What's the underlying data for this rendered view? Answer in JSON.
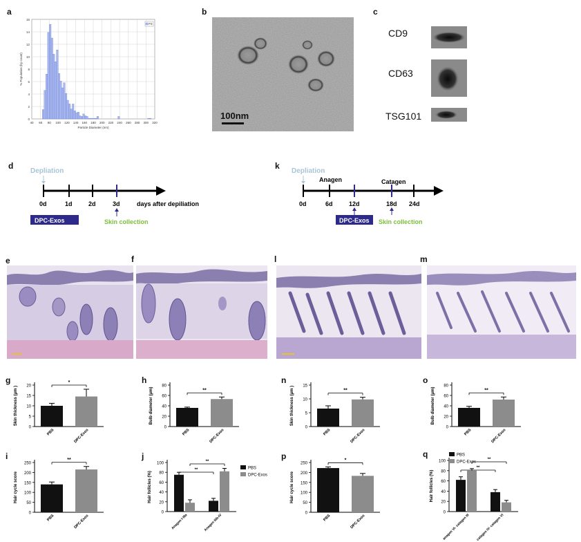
{
  "panel_letters": {
    "a": "a",
    "b": "b",
    "c": "c",
    "d": "d",
    "k": "k",
    "e": "e",
    "f": "f",
    "l": "l",
    "m": "m",
    "g": "g",
    "h": "h",
    "n": "n",
    "o": "o",
    "i": "i",
    "j": "j",
    "p": "p",
    "q": "q"
  },
  "colors": {
    "histogram_bar": "#a9b8ee",
    "histogram_edge": "#5a6fd0",
    "dpc_box": "#2e2a8c",
    "depilation": "#a9c4d6",
    "skin_collection": "#7cbf3a",
    "pbs_bar": "#111111",
    "exos_bar": "#8c8c8c",
    "he_tissue": "#b9a6d1"
  },
  "panel_b": {
    "scale_label": "100nm"
  },
  "panel_c": {
    "bands": [
      {
        "label": "CD9"
      },
      {
        "label": "CD63"
      },
      {
        "label": "TSG101"
      }
    ]
  },
  "timeline_d": {
    "depilation_label": "Depliation",
    "ticks": [
      "0d",
      "1d",
      "2d",
      "3d"
    ],
    "axis_label": "days after depiliation",
    "dpc_label": "DPC-Exos",
    "collection_label": "Skin collection"
  },
  "timeline_k": {
    "depilation_label": "Depliation",
    "phase_labels": [
      "Anagen",
      "Catagen"
    ],
    "ticks": [
      "0d",
      "6d",
      "12d",
      "18d",
      "24d"
    ],
    "dpc_label": "DPC-Exos",
    "collection_label": "Skin collection"
  },
  "chart_data": [
    {
      "panel": "a",
      "type": "bar",
      "legend": "P3",
      "xlabel": "Particle Diameter (nm)",
      "ylabel": "% Population (by count)",
      "x_ticks": [
        40,
        60,
        80,
        100,
        120,
        140,
        160,
        180,
        200,
        220,
        240,
        260,
        280,
        300,
        320
      ],
      "ylim": [
        0,
        16
      ],
      "y_ticks": [
        0,
        2,
        4,
        6,
        8,
        10,
        12,
        14,
        16
      ],
      "bin_width": 4,
      "x": [
        66,
        70,
        74,
        78,
        82,
        86,
        90,
        94,
        98,
        102,
        106,
        110,
        114,
        118,
        122,
        126,
        130,
        134,
        138,
        142,
        146,
        150,
        154,
        158,
        162,
        166,
        170,
        174,
        178,
        182,
        186,
        190,
        194,
        198,
        202,
        206,
        210,
        214,
        218,
        222,
        226,
        230,
        234,
        238,
        242,
        246,
        250,
        254,
        258,
        262,
        266,
        270,
        274,
        278,
        282,
        286,
        290,
        294,
        298,
        302,
        306,
        310
      ],
      "values": [
        1.5,
        4.6,
        7.2,
        13.9,
        15.2,
        13.0,
        10.4,
        9.2,
        11.1,
        7.3,
        6.1,
        5.0,
        5.8,
        4.1,
        3.0,
        2.4,
        1.6,
        2.4,
        1.3,
        1.0,
        1.1,
        0.5,
        0.4,
        0.8,
        0.5,
        0.4,
        0.1,
        0.1,
        0.1,
        0.1,
        0.1,
        0.4,
        0,
        0,
        0,
        0,
        0,
        0,
        0,
        0,
        0,
        0,
        0,
        0.4,
        0,
        0,
        0,
        0,
        0,
        0,
        0,
        0,
        0,
        0,
        0,
        0,
        0,
        0,
        0,
        0,
        0.1,
        0.1
      ]
    },
    {
      "panel": "g",
      "type": "bar",
      "categories": [
        "PBS",
        "DPC-Exos"
      ],
      "values": [
        10,
        14.5
      ],
      "errors": [
        1.2,
        3.5
      ],
      "ylabel": "Skin thickness (μm )",
      "ylim": [
        0,
        20
      ],
      "y_ticks": [
        0,
        5,
        10,
        15,
        20
      ],
      "sig": "*"
    },
    {
      "panel": "h",
      "type": "bar",
      "categories": [
        "PBS",
        "DPC-Exos"
      ],
      "values": [
        36,
        53
      ],
      "errors": [
        1.5,
        4
      ],
      "ylabel": "Bulb diameter (μm)",
      "ylim": [
        0,
        80
      ],
      "y_ticks": [
        0,
        20,
        40,
        60,
        80
      ],
      "sig": "**"
    },
    {
      "panel": "n",
      "type": "bar",
      "categories": [
        "PBS",
        "DPC-Exos"
      ],
      "values": [
        6.5,
        9.8
      ],
      "errors": [
        1,
        0.8
      ],
      "ylabel": "Skin thickness (μm )",
      "ylim": [
        0,
        15
      ],
      "y_ticks": [
        0,
        5,
        10,
        15
      ],
      "sig": "**"
    },
    {
      "panel": "o",
      "type": "bar",
      "categories": [
        "PBS",
        "DPC-Exos"
      ],
      "values": [
        36,
        52
      ],
      "errors": [
        3,
        5
      ],
      "ylabel": "Bulb diameter (μm)",
      "ylim": [
        0,
        80
      ],
      "y_ticks": [
        0,
        20,
        40,
        60,
        80
      ],
      "sig": "**"
    },
    {
      "panel": "i",
      "type": "bar",
      "categories": [
        "PBS",
        "DPC-Exos"
      ],
      "values": [
        140,
        215
      ],
      "errors": [
        12,
        15
      ],
      "ylabel": "Hair cycle score",
      "ylim": [
        0,
        250
      ],
      "y_ticks": [
        0,
        50,
        100,
        150,
        200,
        250
      ],
      "sig": "**"
    },
    {
      "panel": "p",
      "type": "bar",
      "categories": [
        "PBS",
        "DPC-Exos"
      ],
      "values": [
        222,
        183
      ],
      "errors": [
        6,
        12
      ],
      "ylabel": "Hair cycle score",
      "ylim": [
        0,
        250
      ],
      "y_ticks": [
        0,
        50,
        100,
        150,
        200,
        250
      ],
      "sig": "*"
    },
    {
      "panel": "j",
      "type": "bar",
      "categories": [
        "Anagen I-IIIa",
        "Anagen IIIb-IV"
      ],
      "ylabel": "Hair follicles (%)",
      "ylim": [
        0,
        100
      ],
      "y_ticks": [
        0,
        20,
        40,
        60,
        80,
        100
      ],
      "series": [
        {
          "name": "PBS",
          "values": [
            75,
            22
          ],
          "errors": [
            5,
            5
          ]
        },
        {
          "name": "DPC-Exos",
          "values": [
            18,
            82
          ],
          "errors": [
            6,
            6
          ]
        }
      ],
      "sig": [
        "**",
        "**"
      ]
    },
    {
      "panel": "q",
      "type": "bar",
      "categories": [
        "anagen VI- catagen III",
        "catagen IV- catagen VI"
      ],
      "ylabel": "Hair follicles (%)",
      "ylim": [
        0,
        100
      ],
      "y_ticks": [
        0,
        20,
        40,
        60,
        80,
        100
      ],
      "series": [
        {
          "name": "PBS",
          "values": [
            62,
            38
          ],
          "errors": [
            6,
            5
          ]
        },
        {
          "name": "DPC-Exos",
          "values": [
            80,
            18
          ],
          "errors": [
            4,
            4
          ]
        }
      ],
      "sig": [
        "**",
        "**"
      ]
    }
  ]
}
